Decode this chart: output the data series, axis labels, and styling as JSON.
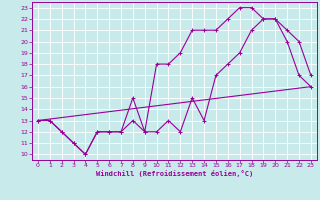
{
  "xlabel": "Windchill (Refroidissement éolien,°C)",
  "bg_color": "#c8eaea",
  "line_color": "#990099",
  "grid_color": "#ffffff",
  "xlim": [
    -0.5,
    23.5
  ],
  "ylim": [
    9.5,
    23.5
  ],
  "xticks": [
    0,
    1,
    2,
    3,
    4,
    5,
    6,
    7,
    8,
    9,
    10,
    11,
    12,
    13,
    14,
    15,
    16,
    17,
    18,
    19,
    20,
    21,
    22,
    23
  ],
  "yticks": [
    10,
    11,
    12,
    13,
    14,
    15,
    16,
    17,
    18,
    19,
    20,
    21,
    22,
    23
  ],
  "line1_x": [
    0,
    1,
    2,
    3,
    4,
    5,
    6,
    7,
    8,
    9,
    10,
    11,
    12,
    13,
    14,
    15,
    16,
    17,
    18,
    19,
    20,
    21,
    22,
    23
  ],
  "line1_y": [
    13,
    13,
    12,
    11,
    10,
    12,
    12,
    12,
    13,
    12,
    12,
    13,
    12,
    15,
    13,
    17,
    18,
    19,
    21,
    22,
    22,
    21,
    20,
    17
  ],
  "line2_x": [
    0,
    1,
    2,
    3,
    4,
    5,
    6,
    7,
    8,
    9,
    10,
    11,
    12,
    13,
    14,
    15,
    16,
    17,
    18,
    19,
    20,
    21,
    22,
    23
  ],
  "line2_y": [
    13,
    13,
    12,
    11,
    10,
    12,
    12,
    12,
    15,
    12,
    18,
    18,
    19,
    21,
    21,
    21,
    22,
    23,
    23,
    22,
    22,
    20,
    17,
    16
  ],
  "line3_x": [
    0,
    23
  ],
  "line3_y": [
    13,
    16
  ]
}
